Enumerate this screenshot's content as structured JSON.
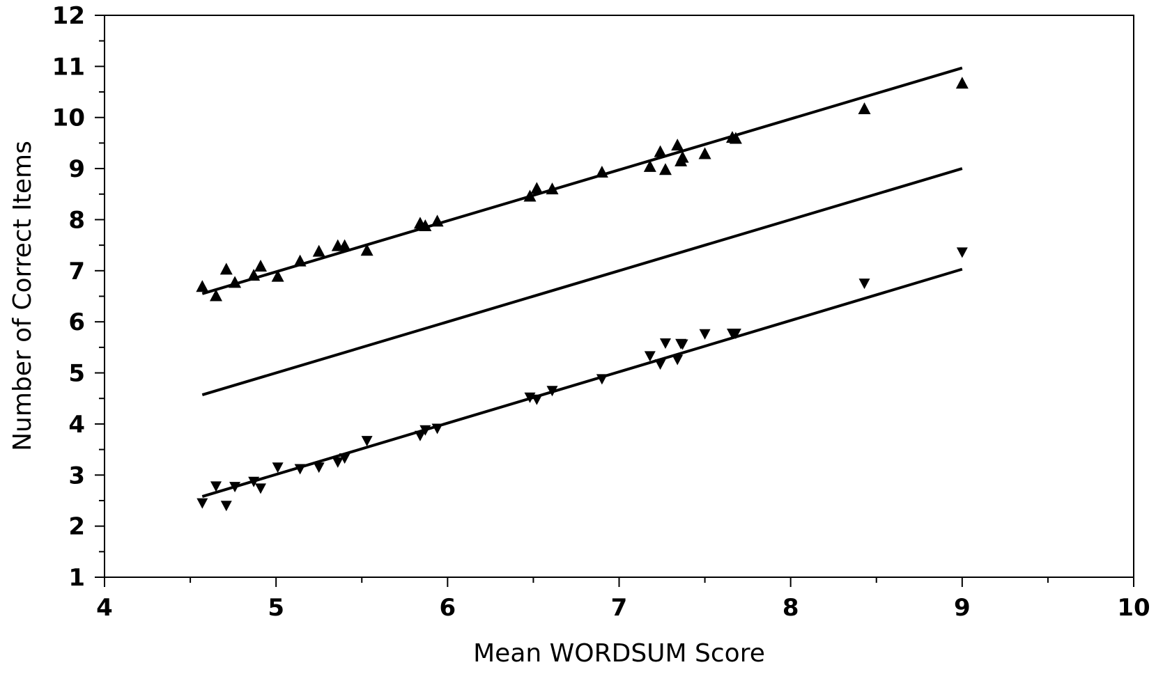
{
  "chart_data": {
    "type": "scatter",
    "xlabel": "Mean WORDSUM Score",
    "ylabel": "Number of Correct Items",
    "xlim": [
      4,
      10
    ],
    "ylim": [
      1,
      12
    ],
    "x_ticks": [
      4,
      5,
      6,
      7,
      8,
      9,
      10
    ],
    "y_ticks": [
      1,
      2,
      3,
      4,
      5,
      6,
      7,
      8,
      9,
      10,
      11,
      12
    ],
    "grid": false,
    "legend": "none",
    "series": [
      {
        "marker": "triangle-up",
        "points": [
          [
            4.57,
            6.68
          ],
          [
            4.65,
            6.5
          ],
          [
            4.71,
            7.02
          ],
          [
            4.76,
            6.76
          ],
          [
            4.87,
            6.9
          ],
          [
            4.91,
            7.08
          ],
          [
            5.01,
            6.88
          ],
          [
            5.14,
            7.18
          ],
          [
            5.25,
            7.37
          ],
          [
            5.36,
            7.48
          ],
          [
            5.4,
            7.48
          ],
          [
            5.53,
            7.39
          ],
          [
            5.84,
            7.92
          ],
          [
            5.87,
            7.87
          ],
          [
            5.94,
            7.96
          ],
          [
            6.48,
            8.45
          ],
          [
            6.52,
            8.6
          ],
          [
            6.61,
            8.59
          ],
          [
            6.9,
            8.92
          ],
          [
            7.18,
            9.03
          ],
          [
            7.24,
            9.32
          ],
          [
            7.27,
            8.97
          ],
          [
            7.34,
            9.45
          ],
          [
            7.36,
            9.14
          ],
          [
            7.37,
            9.21
          ],
          [
            7.5,
            9.28
          ],
          [
            7.66,
            9.6
          ],
          [
            7.68,
            9.58
          ],
          [
            8.43,
            10.16
          ],
          [
            9.0,
            10.66
          ]
        ]
      },
      {
        "marker": "triangle-down",
        "points": [
          [
            4.57,
            2.45
          ],
          [
            4.65,
            2.78
          ],
          [
            4.71,
            2.4
          ],
          [
            4.76,
            2.77
          ],
          [
            4.87,
            2.87
          ],
          [
            4.91,
            2.74
          ],
          [
            5.01,
            3.15
          ],
          [
            5.14,
            3.12
          ],
          [
            5.25,
            3.15
          ],
          [
            5.36,
            3.25
          ],
          [
            5.4,
            3.33
          ],
          [
            5.53,
            3.67
          ],
          [
            5.84,
            3.77
          ],
          [
            5.87,
            3.88
          ],
          [
            5.94,
            3.91
          ],
          [
            6.48,
            4.52
          ],
          [
            6.52,
            4.48
          ],
          [
            6.61,
            4.65
          ],
          [
            6.9,
            4.88
          ],
          [
            7.18,
            5.33
          ],
          [
            7.24,
            5.17
          ],
          [
            7.27,
            5.58
          ],
          [
            7.34,
            5.26
          ],
          [
            7.36,
            5.57
          ],
          [
            7.37,
            5.56
          ],
          [
            7.5,
            5.76
          ],
          [
            7.66,
            5.77
          ],
          [
            7.68,
            5.77
          ],
          [
            8.43,
            6.75
          ],
          [
            9.0,
            7.36
          ]
        ]
      }
    ],
    "lines": [
      {
        "x": [
          4.57,
          9.0
        ],
        "y": [
          6.55,
          10.97
        ]
      },
      {
        "x": [
          4.57,
          9.0
        ],
        "y": [
          4.57,
          9.0
        ]
      },
      {
        "x": [
          4.57,
          9.0
        ],
        "y": [
          2.58,
          7.03
        ]
      }
    ]
  }
}
